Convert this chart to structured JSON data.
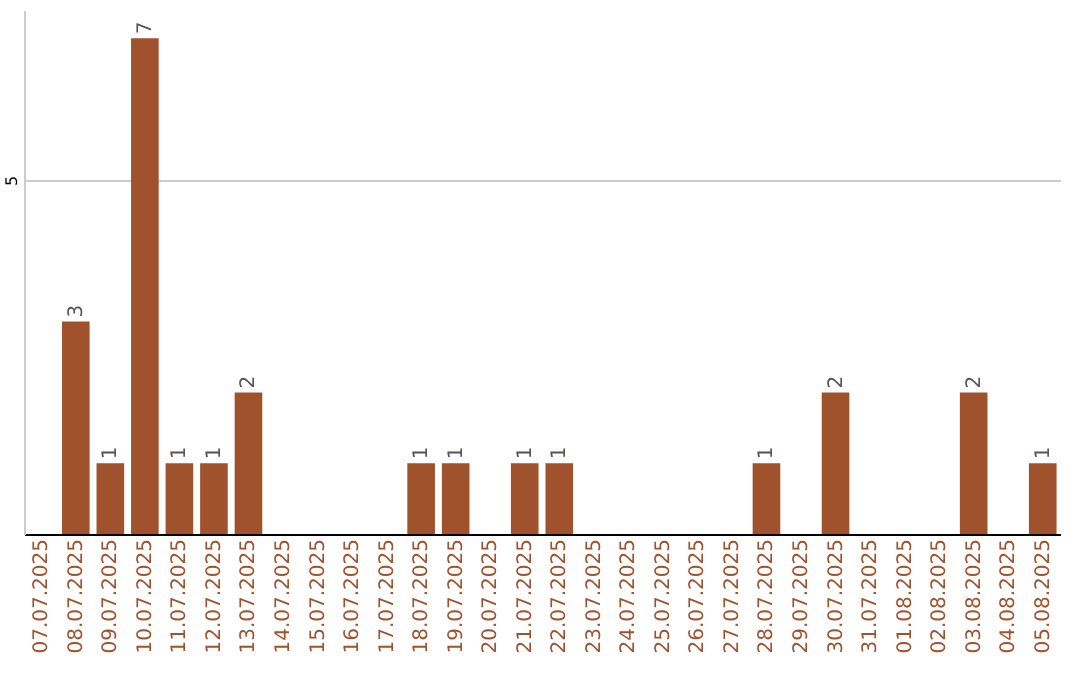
{
  "chart_data": {
    "type": "bar",
    "categories": [
      "07.07.2025",
      "08.07.2025",
      "09.07.2025",
      "10.07.2025",
      "11.07.2025",
      "12.07.2025",
      "13.07.2025",
      "14.07.2025",
      "15.07.2025",
      "16.07.2025",
      "17.07.2025",
      "18.07.2025",
      "19.07.2025",
      "20.07.2025",
      "21.07.2025",
      "22.07.2025",
      "23.07.2025",
      "24.07.2025",
      "25.07.2025",
      "26.07.2025",
      "27.07.2025",
      "28.07.2025",
      "29.07.2025",
      "30.07.2025",
      "31.07.2025",
      "01.08.2025",
      "02.08.2025",
      "03.08.2025",
      "04.08.2025",
      "05.08.2025"
    ],
    "values": [
      null,
      3,
      1,
      7,
      1,
      1,
      2,
      null,
      null,
      null,
      null,
      1,
      1,
      null,
      1,
      1,
      null,
      null,
      null,
      null,
      null,
      1,
      null,
      2,
      null,
      null,
      null,
      2,
      null,
      1
    ],
    "color": "#a0522d",
    "ylim": [
      0,
      7.4
    ],
    "yticks": [
      5
    ],
    "grid": "y",
    "data_labels": true
  }
}
